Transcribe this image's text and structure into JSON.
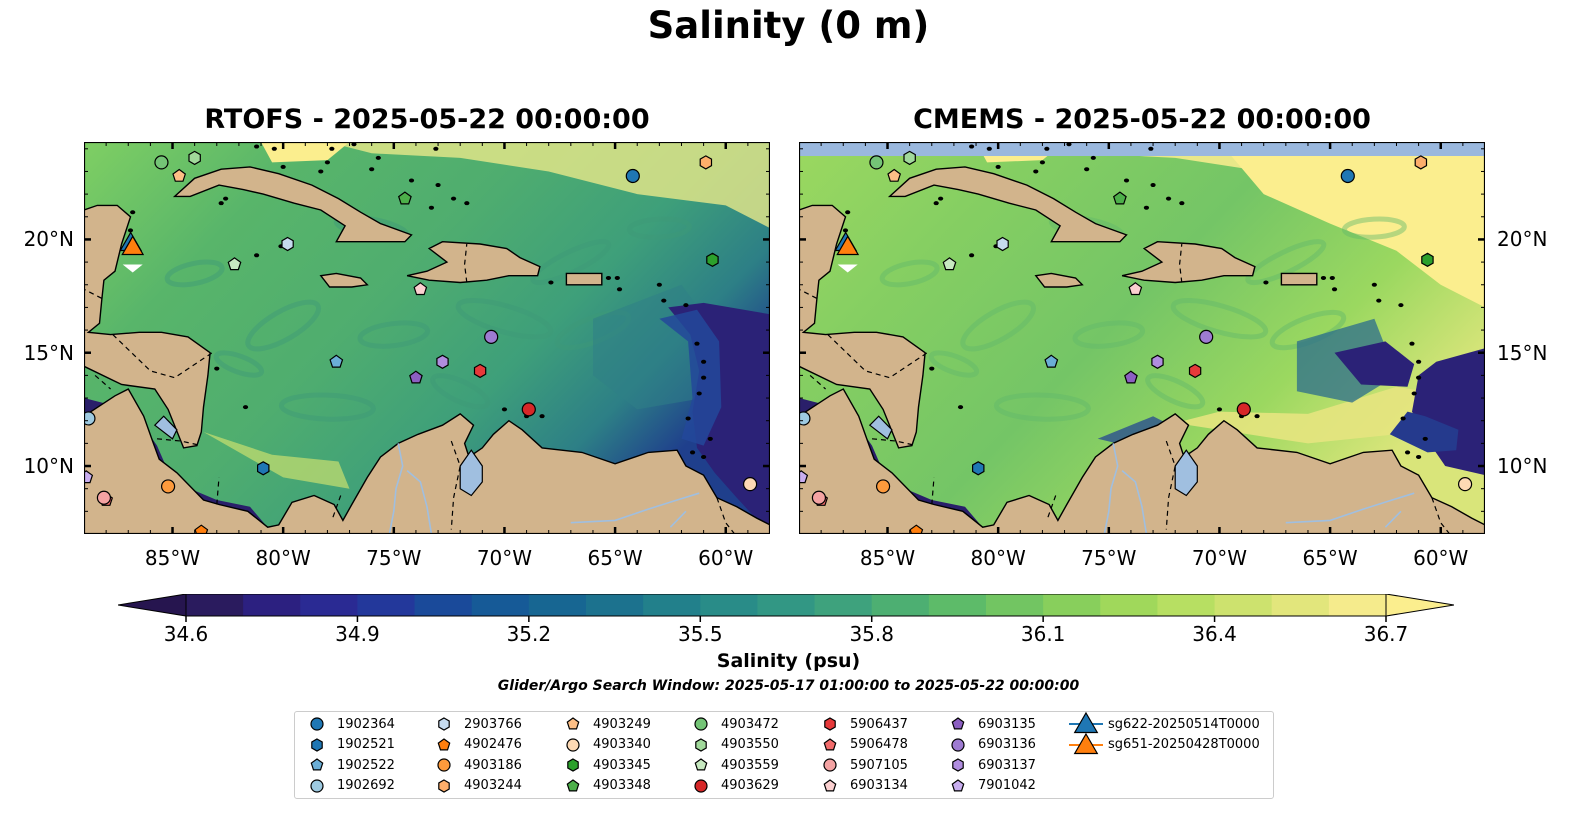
{
  "title": "Salinity (0 m)",
  "panels": [
    {
      "title": "RTOFS - 2025-05-22 00:00:00",
      "model": "RTOFS"
    },
    {
      "title": "CMEMS - 2025-05-22 00:00:00",
      "model": "CMEMS"
    }
  ],
  "map_extent": {
    "lon_min": -89,
    "lon_max": -58,
    "lat_min": 7,
    "lat_max": 24.3
  },
  "lon_ticks": [
    "85°W",
    "80°W",
    "75°W",
    "70°W",
    "65°W",
    "60°W"
  ],
  "lat_ticks": [
    "20°N",
    "15°N",
    "10°N"
  ],
  "colorbar": {
    "label": "Salinity (psu)",
    "ticks": [
      "34.6",
      "34.9",
      "35.2",
      "35.5",
      "35.8",
      "36.1",
      "36.4",
      "36.7"
    ],
    "colormap": "haline",
    "extend": "both"
  },
  "search_window": "Glider/Argo Search Window: 2025-05-17 01:00:00 to 2025-05-22 00:00:00",
  "colors": {
    "land": "#d2b48c",
    "lakes": "#a0bfe0",
    "glider_sg622": "#1f77b4",
    "glider_sg651": "#ff7f0e"
  },
  "legend": [
    {
      "label": "1902364",
      "marker": "circle",
      "color": "#1f77b4"
    },
    {
      "label": "1902521",
      "marker": "hexagon",
      "color": "#1f77b4"
    },
    {
      "label": "1902522",
      "marker": "pentagon",
      "color": "#6baed6"
    },
    {
      "label": "1902692",
      "marker": "circle",
      "color": "#9ecae1"
    },
    {
      "label": "2903766",
      "marker": "hexagon",
      "color": "#c6dbef"
    },
    {
      "label": "4902476",
      "marker": "pentagon",
      "color": "#ff7f0e"
    },
    {
      "label": "4903186",
      "marker": "circle",
      "color": "#fd9a3c"
    },
    {
      "label": "4903244",
      "marker": "hexagon",
      "color": "#fdae6b"
    },
    {
      "label": "4903249",
      "marker": "pentagon",
      "color": "#fdbf86"
    },
    {
      "label": "4903340",
      "marker": "circle",
      "color": "#fdd9b4"
    },
    {
      "label": "4903345",
      "marker": "hexagon",
      "color": "#2ca02c"
    },
    {
      "label": "4903348",
      "marker": "pentagon",
      "color": "#4daf4a"
    },
    {
      "label": "4903472",
      "marker": "circle",
      "color": "#74c476"
    },
    {
      "label": "4903550",
      "marker": "hexagon",
      "color": "#a1d99b"
    },
    {
      "label": "4903559",
      "marker": "pentagon",
      "color": "#c7e9c0"
    },
    {
      "label": "4903629",
      "marker": "circle",
      "color": "#d62728"
    },
    {
      "label": "5906437",
      "marker": "hexagon",
      "color": "#e6393a"
    },
    {
      "label": "5906478",
      "marker": "pentagon",
      "color": "#f26b6b"
    },
    {
      "label": "5907105",
      "marker": "circle",
      "color": "#f4a3a3"
    },
    {
      "label": "6903134",
      "marker": "pentagon",
      "color": "#fbd0d0"
    },
    {
      "label": "6903135",
      "marker": "pentagon",
      "color": "#8c5fc2"
    },
    {
      "label": "6903136",
      "marker": "circle",
      "color": "#9e7bd2"
    },
    {
      "label": "6903137",
      "marker": "hexagon",
      "color": "#b08ddf"
    },
    {
      "label": "7901042",
      "marker": "pentagon",
      "color": "#c9aef0"
    },
    {
      "label": "sg622-20250514T0000",
      "marker": "triangle",
      "color": "#1f77b4"
    },
    {
      "label": "sg651-20250428T0000",
      "marker": "triangle",
      "color": "#ff7f0e"
    }
  ],
  "floats": [
    {
      "id": "1902364",
      "lon": -64.2,
      "lat": 22.8
    },
    {
      "id": "1902521",
      "lon": -80.9,
      "lat": 9.9
    },
    {
      "id": "1902522",
      "lon": -77.6,
      "lat": 14.6
    },
    {
      "id": "1902692",
      "lon": -88.8,
      "lat": 12.1
    },
    {
      "id": "2903766",
      "lon": -79.8,
      "lat": 19.8
    },
    {
      "id": "4902476",
      "lon": -83.7,
      "lat": 7.1
    },
    {
      "id": "4903186",
      "lon": -85.2,
      "lat": 9.1
    },
    {
      "id": "4903244",
      "lon": -60.9,
      "lat": 23.4
    },
    {
      "id": "4903249",
      "lon": -84.7,
      "lat": 22.8
    },
    {
      "id": "4903340",
      "lon": -58.9,
      "lat": 9.2
    },
    {
      "id": "4903345",
      "lon": -60.6,
      "lat": 19.1
    },
    {
      "id": "4903348",
      "lon": -74.5,
      "lat": 21.8
    },
    {
      "id": "4903472",
      "lon": -85.5,
      "lat": 23.4
    },
    {
      "id": "4903550",
      "lon": -84.0,
      "lat": 23.6
    },
    {
      "id": "4903559",
      "lon": -82.2,
      "lat": 18.9
    },
    {
      "id": "4903629",
      "lon": -68.9,
      "lat": 12.5
    },
    {
      "id": "5906437",
      "lon": -71.1,
      "lat": 14.2
    },
    {
      "id": "5906478",
      "lon": -88.0,
      "lat": 8.5
    },
    {
      "id": "5907105",
      "lon": -88.1,
      "lat": 8.6
    },
    {
      "id": "6903134",
      "lon": -73.8,
      "lat": 17.8
    },
    {
      "id": "6903135",
      "lon": -74.0,
      "lat": 13.9
    },
    {
      "id": "6903136",
      "lon": -70.6,
      "lat": 15.7
    },
    {
      "id": "6903137",
      "lon": -72.8,
      "lat": 14.6
    },
    {
      "id": "7901042",
      "lon": -88.9,
      "lat": 9.5
    }
  ],
  "gliders": [
    {
      "id": "sg622-20250514T0000",
      "lon": -86.8,
      "lat": 19.6
    },
    {
      "id": "sg651-20250428T0000",
      "lon": -86.8,
      "lat": 19.5
    }
  ]
}
